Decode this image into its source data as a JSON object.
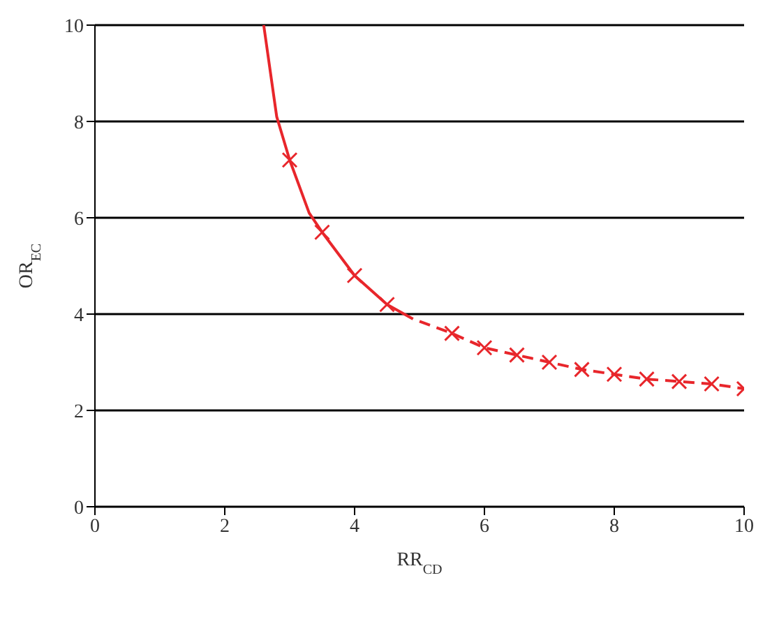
{
  "chart_data": {
    "type": "line",
    "xlabel": "RR$_{CD}$",
    "ylabel": "OR$_{EC}$",
    "xlim": [
      0,
      10
    ],
    "ylim": [
      0,
      10
    ],
    "xticks": [
      0,
      2,
      4,
      6,
      8,
      10
    ],
    "yticks": [
      0,
      2,
      4,
      6,
      8,
      10
    ],
    "grid": "y",
    "series": [
      {
        "color": "#e8262b",
        "line_style": "solid",
        "marker": "none",
        "x": [
          2.6,
          2.8,
          3,
          3.3,
          3.5,
          4,
          4.5,
          4.9
        ],
        "values": [
          10,
          8.1,
          7.2,
          6.1,
          5.7,
          4.8,
          4.2,
          3.9
        ]
      },
      {
        "color": "#e8262b",
        "line_style": "dashed",
        "marker": "none",
        "x": [
          5,
          5.5,
          6,
          6.5,
          7,
          7.5,
          8,
          8.5,
          9,
          9.5,
          10
        ],
        "values": [
          3.85,
          3.6,
          3.3,
          3.15,
          3,
          2.85,
          2.75,
          2.65,
          2.6,
          2.55,
          2.45
        ]
      },
      {
        "type": "scatter",
        "color": "#e8262b",
        "marker": "cross",
        "x": [
          3,
          3.5,
          4,
          4.5,
          5.5,
          6,
          6.5,
          7,
          7.5,
          8,
          8.5,
          9,
          9.5,
          10
        ],
        "values": [
          7.2,
          5.7,
          4.8,
          4.2,
          3.6,
          3.3,
          3.15,
          3,
          2.85,
          2.75,
          2.65,
          2.6,
          2.55,
          2.45
        ]
      }
    ]
  }
}
